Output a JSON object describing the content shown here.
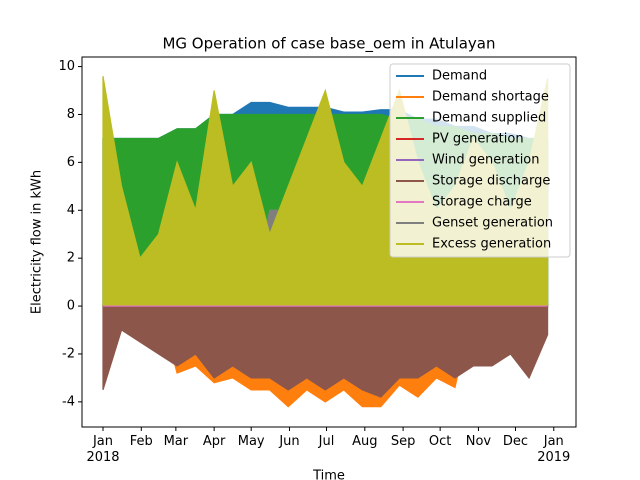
{
  "chart_data": {
    "type": "area",
    "title": "MG Operation of case base_oem in Atulayan",
    "x_label": "Time",
    "y_label": "Electricity flow in kWh",
    "x": [
      0,
      15,
      30,
      45,
      60,
      75,
      90,
      105,
      120,
      135,
      150,
      165,
      180,
      195,
      210,
      225,
      240,
      255,
      270,
      285,
      300,
      315,
      330,
      345,
      360
    ],
    "xlim": [
      -17,
      383
    ],
    "xticks": [
      {
        "value": 0,
        "label": "Jan\n2018"
      },
      {
        "value": 31,
        "label": "Feb"
      },
      {
        "value": 59,
        "label": "Mar"
      },
      {
        "value": 90,
        "label": "Apr"
      },
      {
        "value": 120,
        "label": "May"
      },
      {
        "value": 151,
        "label": "Jun"
      },
      {
        "value": 181,
        "label": "Jul"
      },
      {
        "value": 212,
        "label": "Aug"
      },
      {
        "value": 243,
        "label": "Sep"
      },
      {
        "value": 273,
        "label": "Oct"
      },
      {
        "value": 304,
        "label": "Nov"
      },
      {
        "value": 334,
        "label": "Dec"
      },
      {
        "value": 365,
        "label": "Jan\n2019"
      }
    ],
    "ylim": [
      -5.05,
      10.4
    ],
    "yticks": [
      -4,
      -2,
      0,
      2,
      4,
      6,
      8,
      10
    ],
    "legend": "upper right",
    "series": [
      {
        "name": "Demand",
        "color": "#1f77b4",
        "values": [
          7.0,
          7.0,
          7.0,
          7.0,
          7.4,
          7.4,
          8.0,
          8.0,
          8.5,
          8.5,
          8.3,
          8.3,
          8.3,
          8.1,
          8.1,
          8.2,
          8.2,
          7.8,
          7.8,
          7.5,
          7.5,
          7.2,
          7.2,
          7.0,
          7.0
        ]
      },
      {
        "name": "Demand shortage",
        "color": "#ff7f0e",
        "values": [
          0,
          0,
          0,
          0,
          -2.8,
          -2.5,
          -3.2,
          -3,
          -3.5,
          -3.5,
          -4.2,
          -3.5,
          -4,
          -3.5,
          -4.2,
          -4.2,
          -3.3,
          -3.8,
          -3,
          -3.4,
          0,
          0,
          0,
          0,
          0
        ]
      },
      {
        "name": "Demand supplied",
        "color": "#2ca02c",
        "values": [
          7.0,
          7.0,
          7.0,
          7.0,
          7.4,
          7.4,
          8.0,
          8.0,
          8.0,
          8.0,
          8.0,
          8.0,
          8.0,
          8.0,
          8.0,
          8.0,
          7.8,
          7.8,
          7.5,
          7.5,
          7.2,
          7.2,
          7.0,
          7.0,
          7.0
        ]
      },
      {
        "name": "PV generation",
        "color": "#d62728",
        "values": [
          0,
          0,
          0,
          0,
          0,
          0,
          0,
          0,
          0,
          0,
          0,
          0,
          0,
          0,
          0,
          0,
          0,
          0,
          0,
          0,
          0,
          0,
          0,
          0,
          0
        ]
      },
      {
        "name": "Wind generation",
        "color": "#9467bd",
        "values": [
          0,
          0,
          0,
          0,
          0,
          0,
          0,
          0,
          0,
          0,
          0,
          0,
          0,
          0,
          0,
          0,
          0,
          0,
          0,
          0,
          0,
          0,
          0,
          0,
          0
        ]
      },
      {
        "name": "Storage discharge",
        "color": "#8c564b",
        "values": [
          -3.5,
          -1,
          -1.5,
          -2,
          -2.5,
          -2,
          -3,
          -2.5,
          -3,
          -3,
          -3.5,
          -3,
          -3.5,
          -3,
          -3.5,
          -3.8,
          -3,
          -3,
          -2.5,
          -3,
          -2.5,
          -2.5,
          -2,
          -3,
          -1.2
        ]
      },
      {
        "name": "Storage charge",
        "color": "#e377c2",
        "values": [
          0,
          0,
          0,
          0,
          0,
          0,
          0,
          0,
          0,
          0,
          0,
          0,
          0,
          0,
          0,
          0,
          0,
          0,
          0,
          0,
          0,
          0,
          0,
          0,
          0
        ]
      },
      {
        "name": "Genset generation",
        "color": "#7f7f7f",
        "values": [
          0,
          0,
          0,
          0,
          0,
          0,
          0,
          0,
          0,
          4,
          4,
          4,
          4,
          4,
          4,
          4,
          4,
          2,
          1,
          1,
          1,
          0,
          0,
          0,
          0
        ]
      },
      {
        "name": "Excess generation",
        "color": "#bcbd22",
        "values": [
          9.6,
          5,
          2,
          3,
          6,
          4,
          9,
          5,
          6,
          3,
          5,
          7,
          9,
          6,
          5,
          7,
          9,
          6,
          4,
          5,
          7,
          6,
          4,
          6,
          9.5
        ]
      }
    ]
  }
}
